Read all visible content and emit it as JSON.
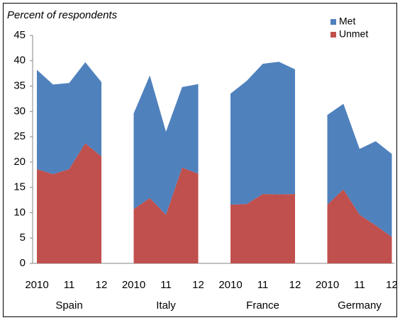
{
  "chart_data": {
    "type": "stacked_area",
    "title": "Percent of respondents",
    "categories": [
      "2010",
      null,
      "11",
      null,
      "12",
      null,
      "2010",
      null,
      "11",
      null,
      "12",
      null,
      "2010",
      null,
      "11",
      null,
      "12",
      null,
      "2010",
      null,
      "11",
      null,
      "12"
    ],
    "groups": [
      "Spain",
      "Italy",
      "France",
      "Germany"
    ],
    "series": [
      {
        "name": "Unmet",
        "color": "#c0504d",
        "values": [
          18.6,
          17.6,
          18.6,
          23.7,
          21.1,
          null,
          10.7,
          12.9,
          9.6,
          18.9,
          17.7,
          null,
          11.6,
          11.7,
          13.7,
          13.6,
          13.7,
          null,
          11.6,
          14.6,
          9.6,
          7.5,
          5.2
        ]
      },
      {
        "name": "Met",
        "color": "#4f81bd",
        "values": [
          19.6,
          17.7,
          17.0,
          16.0,
          14.7,
          null,
          18.9,
          24.2,
          16.4,
          15.9,
          17.7,
          null,
          21.9,
          24.3,
          25.7,
          26.2,
          24.6,
          null,
          17.7,
          16.9,
          13.0,
          16.6,
          16.4
        ]
      }
    ],
    "ylim": [
      0,
      45
    ],
    "yticks": [
      0,
      5,
      10,
      15,
      20,
      25,
      30,
      35,
      40,
      45
    ],
    "legend": "top-right"
  }
}
